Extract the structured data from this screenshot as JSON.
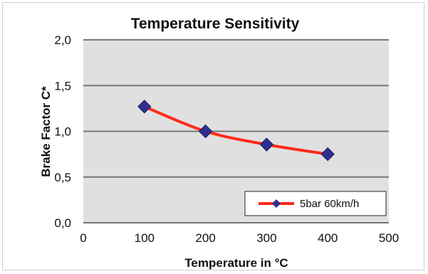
{
  "chart_data": {
    "type": "line",
    "title": "Temperature Sensitivity",
    "xlabel": "Temperature in °C",
    "ylabel": "Brake Factor C*",
    "xlim": [
      0,
      500
    ],
    "ylim": [
      0,
      2.0
    ],
    "x_ticks": [
      0,
      100,
      200,
      300,
      400,
      500
    ],
    "x_tick_labels": [
      "0",
      "100",
      "200",
      "300",
      "400",
      "500"
    ],
    "y_ticks": [
      0,
      0.5,
      1.0,
      1.5,
      2.0
    ],
    "y_tick_labels": [
      "0,0",
      "0,5",
      "1,0",
      "1,5",
      "2,0"
    ],
    "grid": "horizontal",
    "legend_position": "bottom-right",
    "series": [
      {
        "name": "5bar 60km/h",
        "x": [
          100,
          200,
          300,
          400
        ],
        "y": [
          1.27,
          1.0,
          0.855,
          0.75
        ],
        "line_color": "#ff2a1a",
        "marker_color": "#2f2f8f",
        "marker": "diamond"
      }
    ],
    "colors": {
      "plot_background": "#e0e0e0",
      "gridline": "#777777"
    }
  }
}
